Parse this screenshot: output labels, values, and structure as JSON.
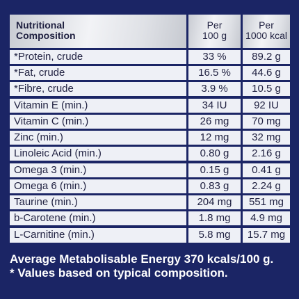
{
  "table": {
    "headers": {
      "label": [
        "Nutritional",
        "Composition"
      ],
      "per100": [
        "Per",
        "100 g"
      ],
      "per1000": [
        "Per",
        "1000 kcal"
      ]
    },
    "rows": [
      {
        "label": "*Protein, crude",
        "per100": "33 %",
        "per1000": "89.2 g"
      },
      {
        "label": "*Fat, crude",
        "per100": "16.5 %",
        "per1000": "44.6 g"
      },
      {
        "label": "*Fibre, crude",
        "per100": "3.9 %",
        "per1000": "10.5 g"
      },
      {
        "label": "Vitamin E (min.)",
        "per100": "34 IU",
        "per1000": "92 IU"
      },
      {
        "label": "Vitamin C (min.)",
        "per100": "26 mg",
        "per1000": "70 mg"
      },
      {
        "label": "Zinc (min.)",
        "per100": "12 mg",
        "per1000": "32 mg"
      },
      {
        "label": "Linoleic Acid (min.)",
        "per100": "0.80 g",
        "per1000": "2.16 g"
      },
      {
        "label": "Omega 3 (min.)",
        "per100": "0.15 g",
        "per1000": "0.41 g"
      },
      {
        "label": "Omega 6 (min.)",
        "per100": "0.83 g",
        "per1000": "2.24 g"
      },
      {
        "label": "Taurine (min.)",
        "per100": "204 mg",
        "per1000": "551 mg"
      },
      {
        "label": "b-Carotene (min.)",
        "per100": "1.8 mg",
        "per1000": "4.9 mg"
      },
      {
        "label": "L-Carnitine (min.)",
        "per100": "5.8 mg",
        "per1000": "15.7 mg"
      }
    ]
  },
  "footnotes": {
    "energy": "Average Metabolisable Energy 370 kcals/100 g.",
    "values": "* Values based on typical composition."
  },
  "colors": {
    "background": "#1b2565",
    "cell": "#eef0f6",
    "text": "#1f2040",
    "footnote_text": "#ffffff"
  }
}
